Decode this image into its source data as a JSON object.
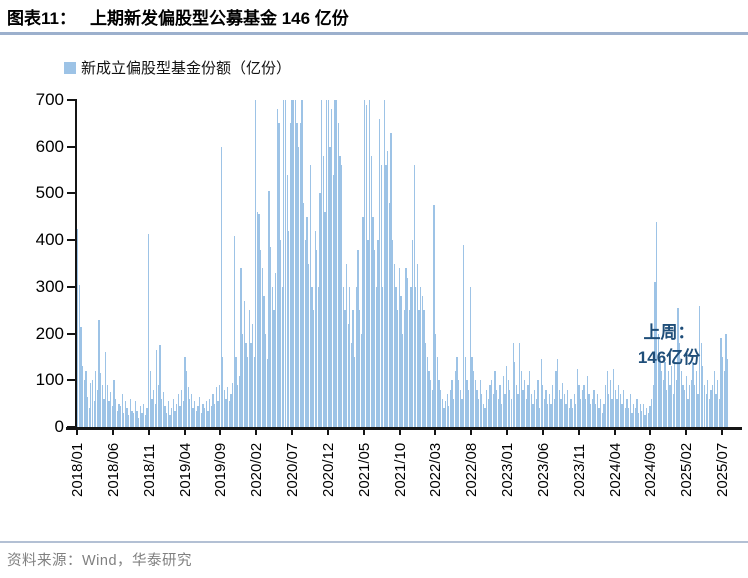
{
  "header": {
    "figure_label": "图表11：",
    "title": "上期新发偏股型公募基金 146 亿份"
  },
  "legend": {
    "label": "新成立偏股型基金份额（亿份）",
    "marker_color": "#9DC3E6"
  },
  "annotation": {
    "line1": "上周：",
    "line2": "146亿份",
    "color": "#1F4E79"
  },
  "footer": {
    "source": "资料来源：Wind，华泰研究"
  },
  "chart_data": {
    "type": "bar",
    "title": "新成立偏股型基金份额（亿份）",
    "xlabel": "",
    "ylabel": "",
    "ylim": [
      0,
      700
    ],
    "y_ticks": [
      0,
      100,
      200,
      300,
      400,
      500,
      600,
      700
    ],
    "x_tick_labels": [
      "2018/01",
      "2018/06",
      "2018/11",
      "2019/04",
      "2019/09",
      "2020/02",
      "2020/07",
      "2020/12",
      "2021/05",
      "2021/10",
      "2022/03",
      "2022/08",
      "2023/01",
      "2023/06",
      "2023/11",
      "2024/04",
      "2024/09",
      "2025/02",
      "2025/07"
    ],
    "x_tick_interval_months": 5,
    "frequency": "weekly",
    "x_start": "2018/01",
    "x_end": "2025/08",
    "grid": false,
    "legend_position": "top-left",
    "bar_color": "#9DC3E6",
    "latest_value": 146,
    "values": [
      425,
      305,
      215,
      130,
      100,
      120,
      65,
      40,
      95,
      100,
      55,
      120,
      80,
      230,
      115,
      90,
      60,
      160,
      90,
      55,
      75,
      45,
      100,
      60,
      35,
      50,
      45,
      70,
      30,
      55,
      40,
      25,
      60,
      35,
      30,
      55,
      35,
      20,
      45,
      30,
      50,
      25,
      40,
      413,
      120,
      60,
      80,
      50,
      165,
      90,
      175,
      60,
      75,
      45,
      30,
      55,
      25,
      40,
      60,
      35,
      50,
      70,
      45,
      80,
      55,
      150,
      120,
      85,
      60,
      70,
      40,
      55,
      35,
      45,
      65,
      30,
      50,
      40,
      55,
      35,
      60,
      45,
      70,
      50,
      85,
      55,
      90,
      600,
      150,
      80,
      60,
      85,
      55,
      70,
      95,
      410,
      150,
      90,
      110,
      340,
      200,
      270,
      180,
      150,
      250,
      180,
      220,
      150,
      700,
      460,
      455,
      380,
      340,
      280,
      200,
      145,
      505,
      385,
      300,
      250,
      330,
      680,
      650,
      400,
      300,
      700,
      700,
      540,
      420,
      650,
      700,
      700,
      700,
      650,
      600,
      650,
      700,
      480,
      400,
      450,
      350,
      560,
      300,
      250,
      420,
      380,
      300,
      500,
      700,
      580,
      460,
      700,
      700,
      600,
      680,
      540,
      700,
      700,
      650,
      580,
      560,
      300,
      250,
      350,
      220,
      300,
      180,
      250,
      150,
      300,
      380,
      250,
      200,
      450,
      700,
      690,
      400,
      700,
      580,
      450,
      380,
      300,
      400,
      660,
      560,
      300,
      700,
      560,
      590,
      480,
      630,
      400,
      350,
      300,
      250,
      340,
      280,
      200,
      250,
      340,
      320,
      250,
      300,
      400,
      560,
      300,
      350,
      250,
      300,
      280,
      250,
      180,
      150,
      120,
      100,
      80,
      475,
      200,
      150,
      100,
      80,
      60,
      40,
      55,
      70,
      45,
      80,
      100,
      60,
      120,
      150,
      100,
      80,
      60,
      390,
      150,
      100,
      80,
      300,
      150,
      120,
      100,
      80,
      60,
      100,
      70,
      50,
      40,
      80,
      60,
      90,
      100,
      70,
      120,
      80,
      60,
      90,
      50,
      110,
      70,
      130,
      100,
      80,
      60,
      180,
      140,
      90,
      70,
      180,
      120,
      80,
      100,
      60,
      90,
      120,
      70,
      50,
      80,
      60,
      100,
      40,
      145,
      90,
      60,
      80,
      50,
      70,
      50,
      90,
      60,
      120,
      145,
      80,
      60,
      95,
      70,
      50,
      80,
      40,
      60,
      40,
      70,
      50,
      125,
      90,
      60,
      80,
      90,
      60,
      110,
      70,
      50,
      60,
      80,
      50,
      70,
      40,
      60,
      30,
      50,
      90,
      120,
      70,
      100,
      60,
      125,
      80,
      60,
      90,
      70,
      50,
      80,
      40,
      60,
      40,
      70,
      30,
      50,
      40,
      60,
      30,
      50,
      35,
      50,
      25,
      40,
      30,
      45,
      60,
      90,
      310,
      440,
      200,
      150,
      120,
      100,
      140,
      80,
      120,
      90,
      130,
      70,
      150,
      100,
      255,
      180,
      120,
      90,
      80,
      110,
      60,
      90,
      100,
      140,
      90,
      120,
      70,
      260,
      180,
      130,
      90,
      70,
      100,
      60,
      80,
      90,
      120,
      70,
      100,
      60,
      190,
      150,
      120,
      200,
      146
    ]
  }
}
